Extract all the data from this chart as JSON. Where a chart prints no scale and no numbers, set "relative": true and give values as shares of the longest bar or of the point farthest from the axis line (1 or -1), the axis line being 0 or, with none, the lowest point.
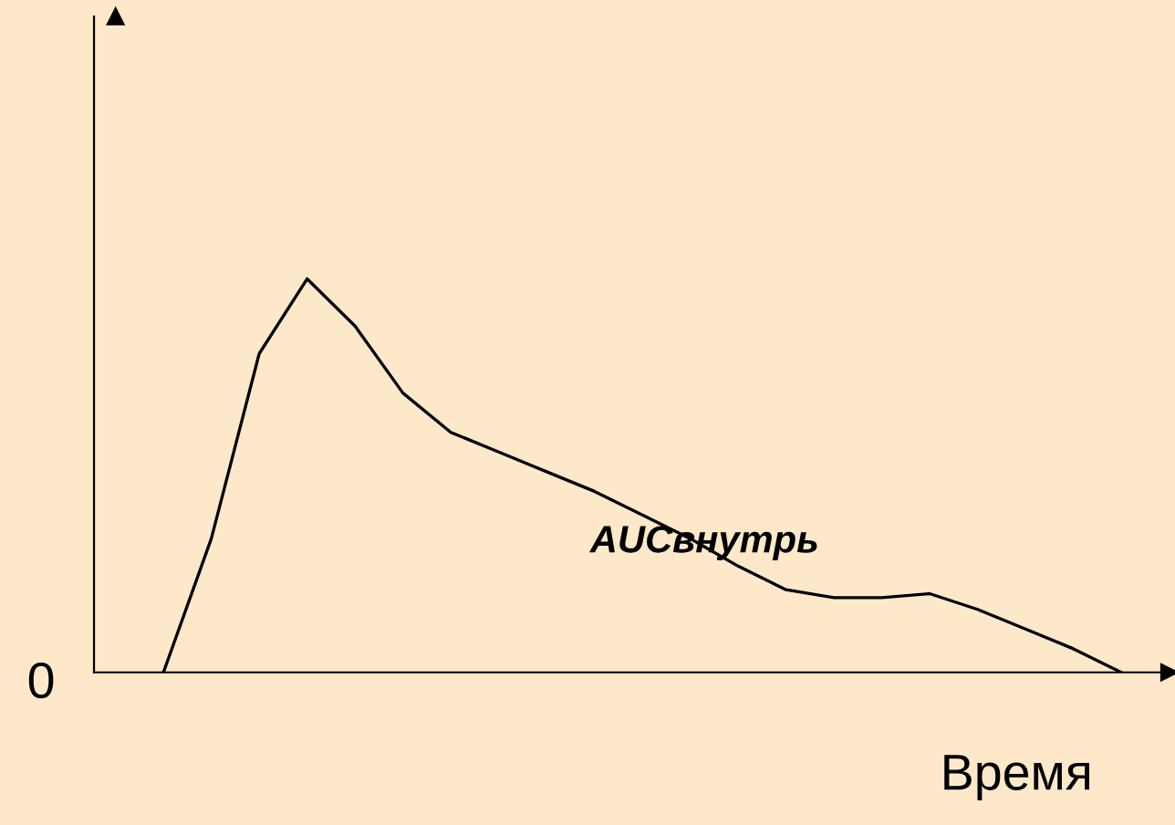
{
  "chart_data": {
    "type": "line",
    "relative": true,
    "xlabel": "Время",
    "annotations": [
      "AUCвнутрь",
      "0"
    ],
    "categories": [
      null,
      null,
      null,
      null,
      null,
      null,
      null,
      null,
      null,
      null,
      null,
      null,
      null,
      null,
      null,
      null,
      null,
      null,
      null,
      null,
      null,
      null,
      null
    ],
    "series": [
      {
        "color": "#000000",
        "values": [
          null,
          0,
          0.34,
          0.81,
          1,
          0.88,
          0.71,
          0.61,
          0.56,
          0.51,
          0.46,
          0.4,
          0.34,
          0.27,
          0.21,
          0.19,
          0.19,
          0.2,
          0.16,
          0.11,
          0.06,
          0,
          null
        ]
      }
    ],
    "legend": false,
    "marker": "none",
    "line_style": "solid"
  }
}
